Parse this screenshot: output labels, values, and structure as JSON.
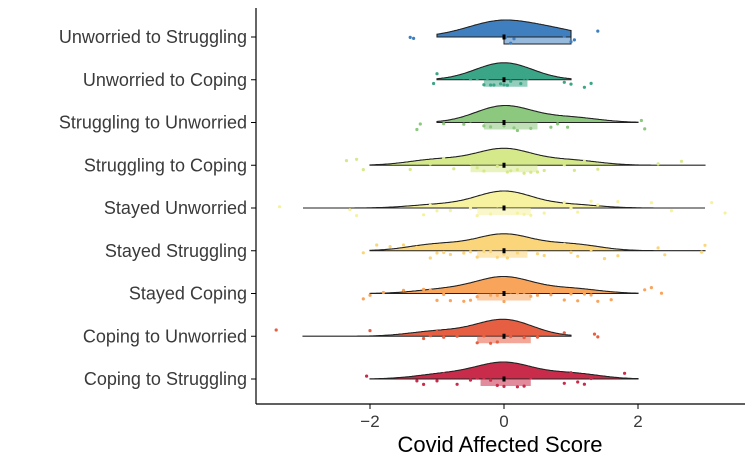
{
  "chart_data": {
    "type": "raincloud",
    "xlabel": "Covid Affected Score",
    "xlim": [
      -3.75,
      3.55
    ],
    "x_ticks": [
      -2,
      0,
      2
    ],
    "grid": false,
    "legend": "none",
    "categories": [
      "Unworried to Struggling",
      "Unworried to Coping",
      "Struggling to Unworried",
      "Struggling to Coping",
      "Stayed Unworried",
      "Stayed Struggling",
      "Stayed Coping",
      "Coping to Unworried",
      "Coping to Struggling"
    ],
    "series": [
      {
        "category": "Unworried to Struggling",
        "color": "#3f7fbf",
        "range": [
          -1.0,
          1.0
        ],
        "median": 0.0,
        "density_peaks": [
          [
            0.0,
            1.0
          ],
          [
            0.7,
            0.55
          ],
          [
            -0.5,
            0.3
          ]
        ],
        "box": [
          0.0,
          1.0
        ],
        "points": [
          -1.4,
          -1.35,
          -0.25,
          -0.05,
          0.0,
          0.02,
          0.05,
          0.1,
          0.15,
          0.9,
          0.95,
          1.0,
          1.05,
          1.4
        ]
      },
      {
        "category": "Unworried to Coping",
        "color": "#3aa587",
        "range": [
          -1.0,
          1.0
        ],
        "median": 0.0,
        "density_peaks": [
          [
            0.0,
            1.0
          ]
        ],
        "box": [
          -0.3,
          0.35
        ],
        "points": [
          -1.05,
          -1.0,
          -0.6,
          -0.5,
          -0.4,
          -0.3,
          -0.25,
          -0.2,
          -0.15,
          -0.1,
          -0.05,
          0.0,
          0.05,
          0.1,
          0.15,
          0.2,
          0.25,
          0.3,
          0.35,
          0.9,
          1.0,
          1.2,
          1.3
        ]
      },
      {
        "category": "Struggling to Unworried",
        "color": "#8cc97e",
        "range": [
          -1.0,
          2.0
        ],
        "median": 0.0,
        "density_peaks": [
          [
            0.0,
            1.0
          ],
          [
            1.0,
            0.3
          ]
        ],
        "box": [
          -0.3,
          0.5
        ],
        "points": [
          -1.3,
          -1.25,
          -0.9,
          -0.6,
          -0.5,
          -0.4,
          -0.3,
          -0.2,
          -0.1,
          0.0,
          0.1,
          0.15,
          0.2,
          0.3,
          0.4,
          0.6,
          0.7,
          0.8,
          0.9,
          0.95,
          2.05,
          2.1
        ]
      },
      {
        "category": "Struggling to Coping",
        "color": "#d5e98a",
        "range": [
          -2.0,
          3.0
        ],
        "median": 0.0,
        "density_peaks": [
          [
            0.0,
            1.0
          ],
          [
            -1.0,
            0.35
          ],
          [
            1.0,
            0.3
          ]
        ],
        "box": [
          -0.5,
          0.5
        ],
        "points": [
          -2.35,
          -2.2,
          -2.1,
          -1.4,
          -1.3,
          -1.1,
          -0.9,
          -0.75,
          -0.6,
          -0.5,
          -0.4,
          -0.3,
          -0.2,
          -0.1,
          0.0,
          0.05,
          0.1,
          0.2,
          0.3,
          0.4,
          0.5,
          0.6,
          0.75,
          0.9,
          1.05,
          1.2,
          1.4,
          2.3,
          2.65
        ]
      },
      {
        "category": "Stayed Unworried",
        "color": "#f6f2a0",
        "range": [
          -3.0,
          3.0
        ],
        "median": 0.0,
        "density_peaks": [
          [
            0.0,
            1.0
          ],
          [
            1.0,
            0.2
          ],
          [
            -1.0,
            0.2
          ]
        ],
        "box": [
          -0.4,
          0.4
        ],
        "points": [
          -3.35,
          -2.3,
          -2.2,
          -1.2,
          -1.1,
          -1.0,
          -0.9,
          -0.8,
          -0.5,
          -0.4,
          -0.3,
          -0.2,
          -0.1,
          0.0,
          0.1,
          0.2,
          0.3,
          0.4,
          0.6,
          0.9,
          1.0,
          1.1,
          1.3,
          1.4,
          1.7,
          2.2,
          2.5,
          3.1,
          3.3
        ]
      },
      {
        "category": "Stayed Struggling",
        "color": "#fbd579",
        "range": [
          -2.0,
          3.0
        ],
        "median": 0.0,
        "density_peaks": [
          [
            0.0,
            1.0
          ],
          [
            1.0,
            0.4
          ],
          [
            -1.0,
            0.4
          ]
        ],
        "box": [
          -0.4,
          0.35
        ],
        "points": [
          -2.1,
          -1.9,
          -1.7,
          -1.5,
          -1.3,
          -1.1,
          -1.0,
          -0.9,
          -0.8,
          -0.6,
          -0.5,
          -0.4,
          -0.3,
          -0.2,
          -0.1,
          0.0,
          0.05,
          0.1,
          0.2,
          0.3,
          0.4,
          0.5,
          0.6,
          0.7,
          0.8,
          0.9,
          1.0,
          1.1,
          1.3,
          1.5,
          1.7,
          2.3,
          2.4,
          2.95,
          3.0
        ]
      },
      {
        "category": "Stayed Coping",
        "color": "#f9a45b",
        "range": [
          -2.0,
          2.0
        ],
        "median": 0.0,
        "density_peaks": [
          [
            0.0,
            1.0
          ],
          [
            -0.9,
            0.25
          ],
          [
            1.0,
            0.3
          ]
        ],
        "box": [
          -0.4,
          0.4
        ],
        "points": [
          -2.1,
          -2.0,
          -1.8,
          -1.5,
          -1.2,
          -1.1,
          -1.0,
          -0.9,
          -0.8,
          -0.7,
          -0.6,
          -0.5,
          -0.4,
          -0.3,
          -0.2,
          -0.1,
          0.0,
          0.1,
          0.2,
          0.3,
          0.4,
          0.5,
          0.7,
          0.9,
          1.0,
          1.1,
          1.2,
          1.3,
          1.4,
          1.6,
          2.1,
          2.2,
          2.35
        ]
      },
      {
        "category": "Coping to Unworried",
        "color": "#e75f43",
        "range": [
          -3.0,
          1.0
        ],
        "median": 0.0,
        "density_peaks": [
          [
            0.0,
            1.0
          ],
          [
            -1.0,
            0.3
          ]
        ],
        "box": [
          -0.4,
          0.4
        ],
        "points": [
          -3.4,
          -2.0,
          -1.2,
          -1.1,
          -1.0,
          -0.9,
          -0.8,
          -0.7,
          -0.5,
          -0.4,
          -0.3,
          -0.2,
          -0.1,
          0.0,
          0.05,
          0.1,
          0.2,
          0.3,
          0.4,
          0.5,
          0.9,
          1.4,
          1.35
        ]
      },
      {
        "category": "Coping to Struggling",
        "color": "#c92c4a",
        "range": [
          -2.0,
          2.0
        ],
        "median": 0.0,
        "density_peaks": [
          [
            0.0,
            1.0
          ],
          [
            -0.9,
            0.3
          ],
          [
            1.0,
            0.35
          ]
        ],
        "box": [
          -0.35,
          0.4
        ],
        "points": [
          -2.05,
          -1.3,
          -1.2,
          -1.0,
          -0.9,
          -0.7,
          -0.5,
          -0.4,
          -0.3,
          -0.2,
          -0.1,
          0.0,
          0.1,
          0.2,
          0.3,
          0.4,
          0.5,
          0.9,
          1.0,
          1.1,
          1.2,
          1.3,
          1.8
        ]
      }
    ]
  }
}
